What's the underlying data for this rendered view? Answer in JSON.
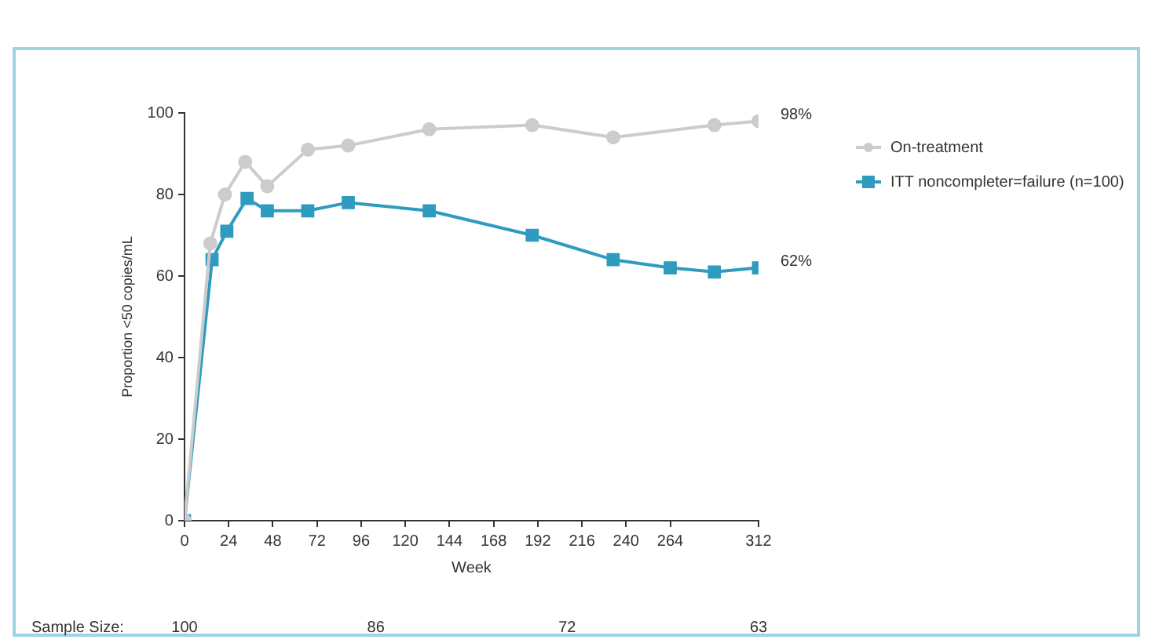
{
  "chart_data": {
    "type": "line",
    "xlabel": "Week",
    "ylabel": "Proportion <50 copies/mL",
    "xlim": [
      0,
      312
    ],
    "xticks": [
      0,
      24,
      48,
      72,
      96,
      120,
      144,
      168,
      192,
      216,
      240,
      264,
      312
    ],
    "ylim": [
      0,
      100
    ],
    "yticks": [
      0,
      20,
      40,
      60,
      80,
      100
    ],
    "grid": false,
    "legend": "right",
    "series": [
      {
        "name": "On-treatment",
        "color": "#cccccc",
        "marker": "circle",
        "x": [
          0,
          14,
          22,
          33,
          45,
          67,
          89,
          133,
          189,
          233,
          288,
          312
        ],
        "values": [
          0,
          68,
          80,
          88,
          82,
          91,
          92,
          96,
          97,
          94,
          97,
          98
        ]
      },
      {
        "name": "ITT noncompleter=failure (n=100)",
        "color": "#2e9bbf",
        "marker": "square",
        "x": [
          0,
          15,
          23,
          34,
          45,
          67,
          89,
          133,
          189,
          233,
          264,
          288,
          312
        ],
        "values": [
          0,
          64,
          71,
          79,
          76,
          76,
          78,
          76,
          70,
          64,
          62,
          61,
          62
        ]
      }
    ],
    "annotations": [
      {
        "text": "98%",
        "x": 312,
        "y": 98
      },
      {
        "text": "62%",
        "x": 312,
        "y": 62
      },
      "Sample Size:",
      "100",
      "86",
      "72",
      "63"
    ]
  }
}
